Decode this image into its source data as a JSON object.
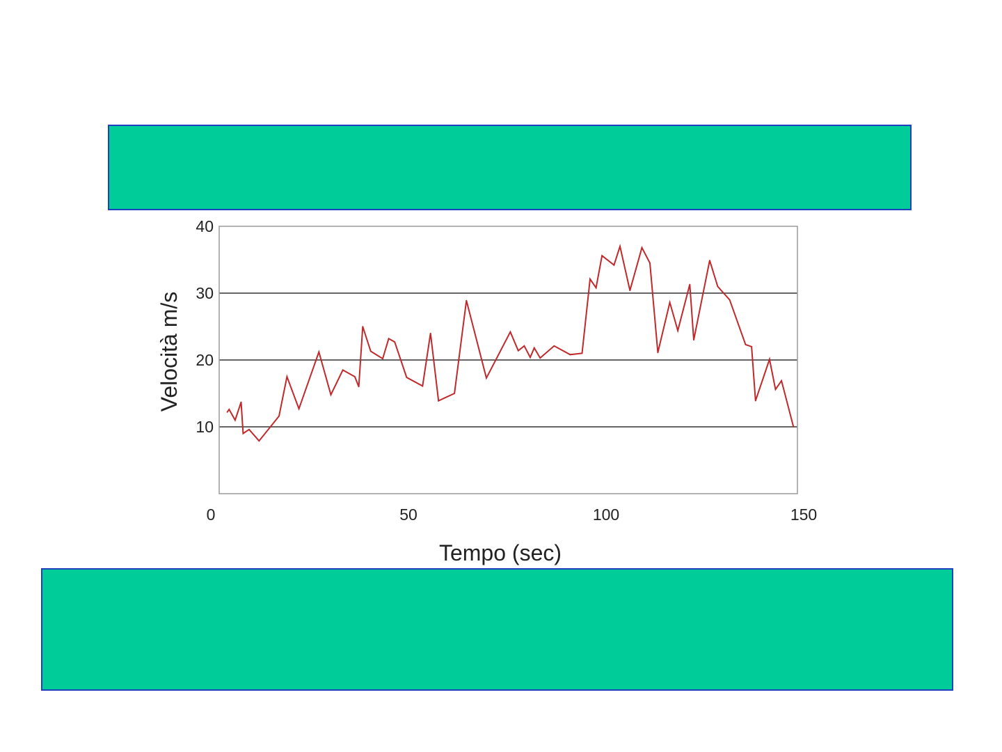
{
  "colors": {
    "box_fill": "#00cc99",
    "box_border": "#1f3fbf",
    "line": "#c0282a",
    "grid": "#333333",
    "frame": "#9a9a9a"
  },
  "chart_data": {
    "type": "line",
    "title": "",
    "xlabel": "Tempo (sec)",
    "ylabel": "Velocità m/s",
    "xlim": [
      0,
      145
    ],
    "ylim": [
      0,
      40
    ],
    "x_ticks": [
      0,
      50,
      100,
      150
    ],
    "x_tick_labels": [
      "0",
      "50",
      "100",
      "150"
    ],
    "y_ticks": [
      10,
      20,
      30,
      40
    ],
    "y_tick_labels": [
      "10",
      "20",
      "30",
      "40"
    ],
    "grid_y": [
      10,
      20,
      30
    ],
    "legend": "none",
    "series": [
      {
        "color": "#c0282a",
        "x": [
          2,
          2.5,
          4,
          5.5,
          6,
          7.5,
          10,
          15,
          17,
          20,
          25,
          28,
          31,
          34,
          35,
          36,
          38,
          41,
          42.5,
          44,
          47,
          51,
          53,
          55,
          59,
          62,
          67,
          73,
          75,
          76.5,
          78,
          79,
          80.5,
          84,
          88,
          91,
          93,
          94.5,
          96,
          99,
          100.5,
          103,
          106,
          108,
          110,
          113,
          115,
          118,
          119,
          123,
          125,
          128,
          132,
          133.5,
          134.5,
          138,
          139.5,
          141,
          144
        ],
        "values": [
          12.2,
          12.6,
          11.0,
          13.7,
          9.0,
          9.6,
          7.9,
          11.6,
          17.5,
          12.7,
          21.2,
          14.8,
          18.5,
          17.5,
          16.0,
          25.0,
          21.3,
          20.2,
          23.2,
          22.7,
          17.4,
          16.1,
          24.0,
          13.9,
          15.0,
          28.9,
          17.3,
          24.2,
          21.4,
          22.1,
          20.4,
          21.8,
          20.3,
          22.1,
          20.8,
          21.0,
          32.1,
          30.8,
          35.6,
          34.2,
          37.0,
          30.4,
          36.8,
          34.5,
          21.1,
          28.6,
          24.4,
          31.3,
          23.0,
          34.9,
          31.0,
          29.0,
          22.3,
          22.0,
          13.9,
          20.1,
          15.6,
          16.9,
          10.0
        ]
      }
    ]
  }
}
